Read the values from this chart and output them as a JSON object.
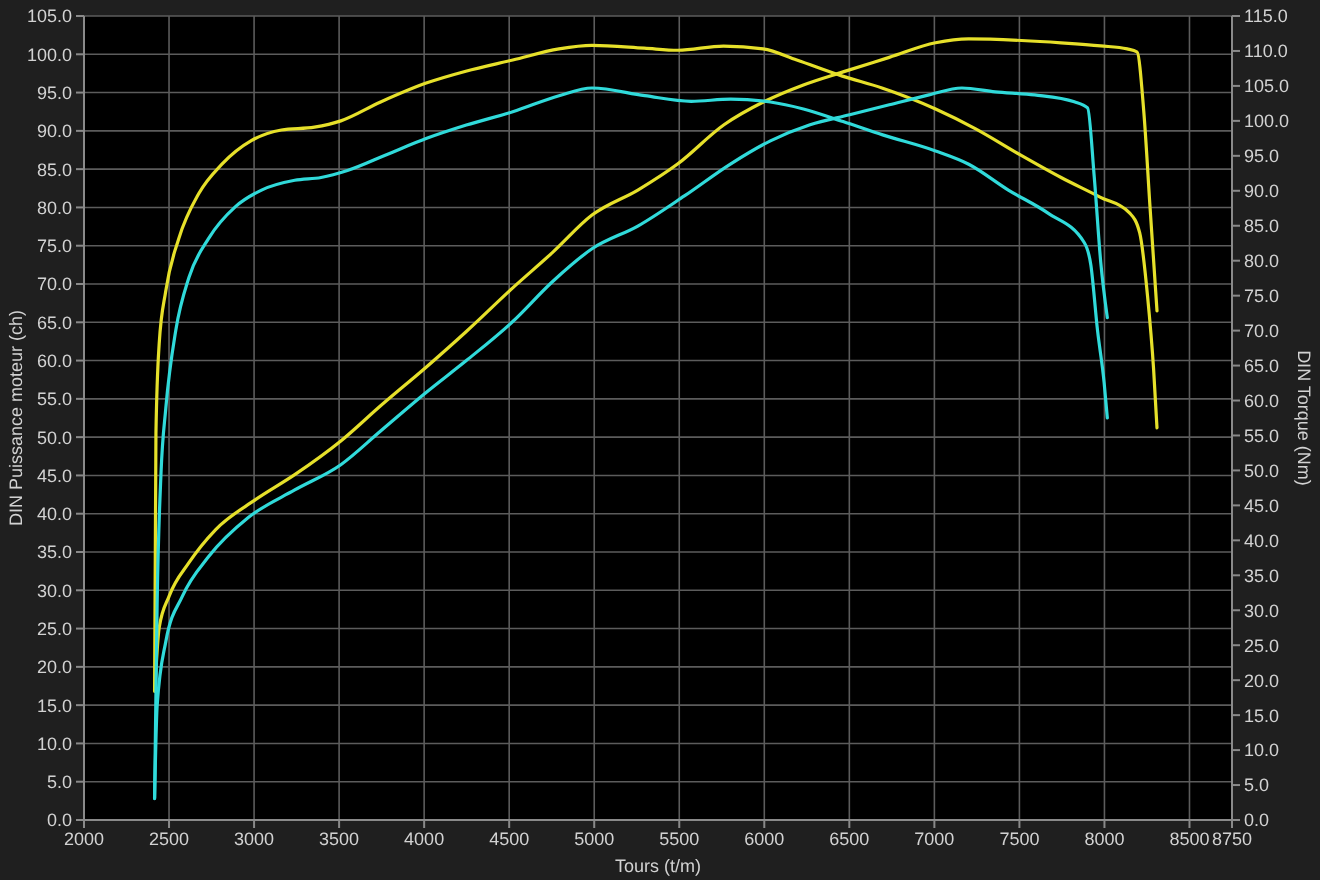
{
  "chart_data": {
    "type": "line",
    "xlabel": "Tours (t/m)",
    "ylabel": "DIN Puissance moteur (ch)",
    "y2label": "DIN Torque (Nm)",
    "xlim": [
      2000,
      8750
    ],
    "xticks": [
      2000,
      2500,
      3000,
      3500,
      4000,
      4500,
      5000,
      5500,
      6000,
      6500,
      7000,
      7500,
      8000,
      8500,
      8750
    ],
    "ylim": [
      0,
      105
    ],
    "yticks": [
      {
        "value": 0,
        "label": "0.0"
      },
      {
        "value": 5,
        "label": "5.0"
      },
      {
        "value": 10,
        "label": "10.0"
      },
      {
        "value": 15,
        "label": "15.0"
      },
      {
        "value": 20,
        "label": "20.0"
      },
      {
        "value": 25,
        "label": "25.0"
      },
      {
        "value": 30,
        "label": "30.0"
      },
      {
        "value": 35,
        "label": "35.0"
      },
      {
        "value": 40,
        "label": "40.0"
      },
      {
        "value": 45,
        "label": "45.0"
      },
      {
        "value": 50,
        "label": "50.0"
      },
      {
        "value": 55,
        "label": "55.0"
      },
      {
        "value": 60,
        "label": "60.0"
      },
      {
        "value": 65,
        "label": "65.0"
      },
      {
        "value": 70,
        "label": "70.0"
      },
      {
        "value": 75,
        "label": "75.0"
      },
      {
        "value": 80,
        "label": "80.0"
      },
      {
        "value": 85,
        "label": "85.0"
      },
      {
        "value": 90,
        "label": "90.0"
      },
      {
        "value": 95,
        "label": "95.0"
      },
      {
        "value": 100,
        "label": "100.0"
      },
      {
        "value": 105,
        "label": "105.0"
      }
    ],
    "y2lim": [
      0,
      115
    ],
    "y2ticks": [
      {
        "value": 0,
        "label": "0.0"
      },
      {
        "value": 5,
        "label": "5.0"
      },
      {
        "value": 10,
        "label": "10.0"
      },
      {
        "value": 15,
        "label": "15.0"
      },
      {
        "value": 20,
        "label": "20.0"
      },
      {
        "value": 25,
        "label": "25.0"
      },
      {
        "value": 30,
        "label": "30.0"
      },
      {
        "value": 35,
        "label": "35.0"
      },
      {
        "value": 40,
        "label": "40.0"
      },
      {
        "value": 45,
        "label": "45.0"
      },
      {
        "value": 50,
        "label": "50.0"
      },
      {
        "value": 55,
        "label": "55.0"
      },
      {
        "value": 60,
        "label": "60.0"
      },
      {
        "value": 65,
        "label": "65.0"
      },
      {
        "value": 70,
        "label": "70.0"
      },
      {
        "value": 75,
        "label": "75.0"
      },
      {
        "value": 80,
        "label": "80.0"
      },
      {
        "value": 85,
        "label": "85.0"
      },
      {
        "value": 90,
        "label": "90.0"
      },
      {
        "value": 95,
        "label": "95.0"
      },
      {
        "value": 100,
        "label": "100.0"
      },
      {
        "value": 105,
        "label": "105.0"
      },
      {
        "value": 110,
        "label": "110.0"
      },
      {
        "value": 115,
        "label": "115.0"
      }
    ],
    "grid": true,
    "series": [
      {
        "color": "#e6e02a",
        "x": [
          2420,
          2442,
          2500,
          2617,
          2773,
          3006,
          3239,
          3510,
          3744,
          4015,
          4248,
          4521,
          4754,
          4987,
          5259,
          5492,
          5763,
          5997,
          6230,
          6463,
          6735,
          7007,
          7202,
          7512,
          7745,
          7978,
          8134,
          8192,
          8231,
          8269,
          8309
        ],
        "values": [
          18.5,
          25.1,
          29.2,
          33.6,
          37.9,
          41.8,
          45.1,
          49.5,
          54.1,
          59.2,
          63.8,
          69.5,
          74.1,
          79.0,
          82.3,
          85.7,
          90.8,
          93.8,
          96.0,
          97.7,
          99.6,
          101.5,
          102.0,
          101.8,
          101.5,
          101.1,
          100.7,
          100.3,
          92.6,
          79.7,
          66.5
        ]
      },
      {
        "color": "#e6e02a",
        "axis": "y2",
        "x": [
          2415,
          2423,
          2442,
          2481,
          2558,
          2675,
          2811,
          2986,
          3161,
          3355,
          3510,
          3744,
          4012,
          4245,
          4521,
          4793,
          4987,
          5294,
          5492,
          5760,
          5993,
          6191,
          6459,
          6692,
          7007,
          7240,
          7508,
          7745,
          7974,
          8149,
          8207,
          8254,
          8289,
          8309
        ],
        "values": [
          18.4,
          55.3,
          68.1,
          75.7,
          83.2,
          89.6,
          93.8,
          97.2,
          98.7,
          99.1,
          100.0,
          102.7,
          105.4,
          107.1,
          108.7,
          110.3,
          110.8,
          110.4,
          110.1,
          110.7,
          110.3,
          108.7,
          106.4,
          104.7,
          101.7,
          98.9,
          95.1,
          91.9,
          89.1,
          86.8,
          84.0,
          74.8,
          64.5,
          56.1
        ]
      },
      {
        "color": "#30dada",
        "x": [
          2415,
          2430,
          2481,
          2578,
          2733,
          2966,
          3239,
          3510,
          3744,
          4015,
          4248,
          4521,
          4754,
          4987,
          5259,
          5530,
          5803,
          6036,
          6269,
          6502,
          6735,
          6968,
          7162,
          7357,
          7590,
          7823,
          7901,
          7940,
          7978,
          8017
        ],
        "values": [
          2.8,
          14.9,
          23.3,
          29.2,
          34.4,
          39.5,
          43.1,
          46.4,
          50.8,
          55.9,
          60.0,
          65.1,
          70.3,
          74.6,
          77.6,
          81.5,
          85.7,
          88.7,
          90.8,
          92.1,
          93.4,
          94.7,
          95.6,
          95.1,
          94.7,
          93.8,
          93.0,
          84.0,
          72.9,
          65.6
        ]
      },
      {
        "color": "#30dada",
        "axis": "y2",
        "x": [
          2415,
          2430,
          2453,
          2481,
          2540,
          2617,
          2733,
          2889,
          3044,
          3239,
          3394,
          3549,
          3782,
          4015,
          4248,
          4521,
          4793,
          4987,
          5297,
          5570,
          5803,
          6036,
          6230,
          6463,
          6696,
          7007,
          7202,
          7435,
          7668,
          7881,
          7920,
          7959,
          7998,
          8017
        ],
        "values": [
          3.1,
          31.0,
          49.7,
          58.9,
          70.1,
          77.6,
          83.2,
          87.7,
          90.1,
          91.5,
          91.9,
          92.9,
          95.2,
          97.5,
          99.4,
          101.3,
          103.6,
          104.7,
          103.6,
          102.8,
          103.1,
          102.7,
          101.7,
          99.9,
          98.0,
          95.7,
          93.8,
          90.1,
          86.8,
          82.6,
          79.4,
          70.1,
          62.6,
          57.5
        ]
      }
    ]
  }
}
